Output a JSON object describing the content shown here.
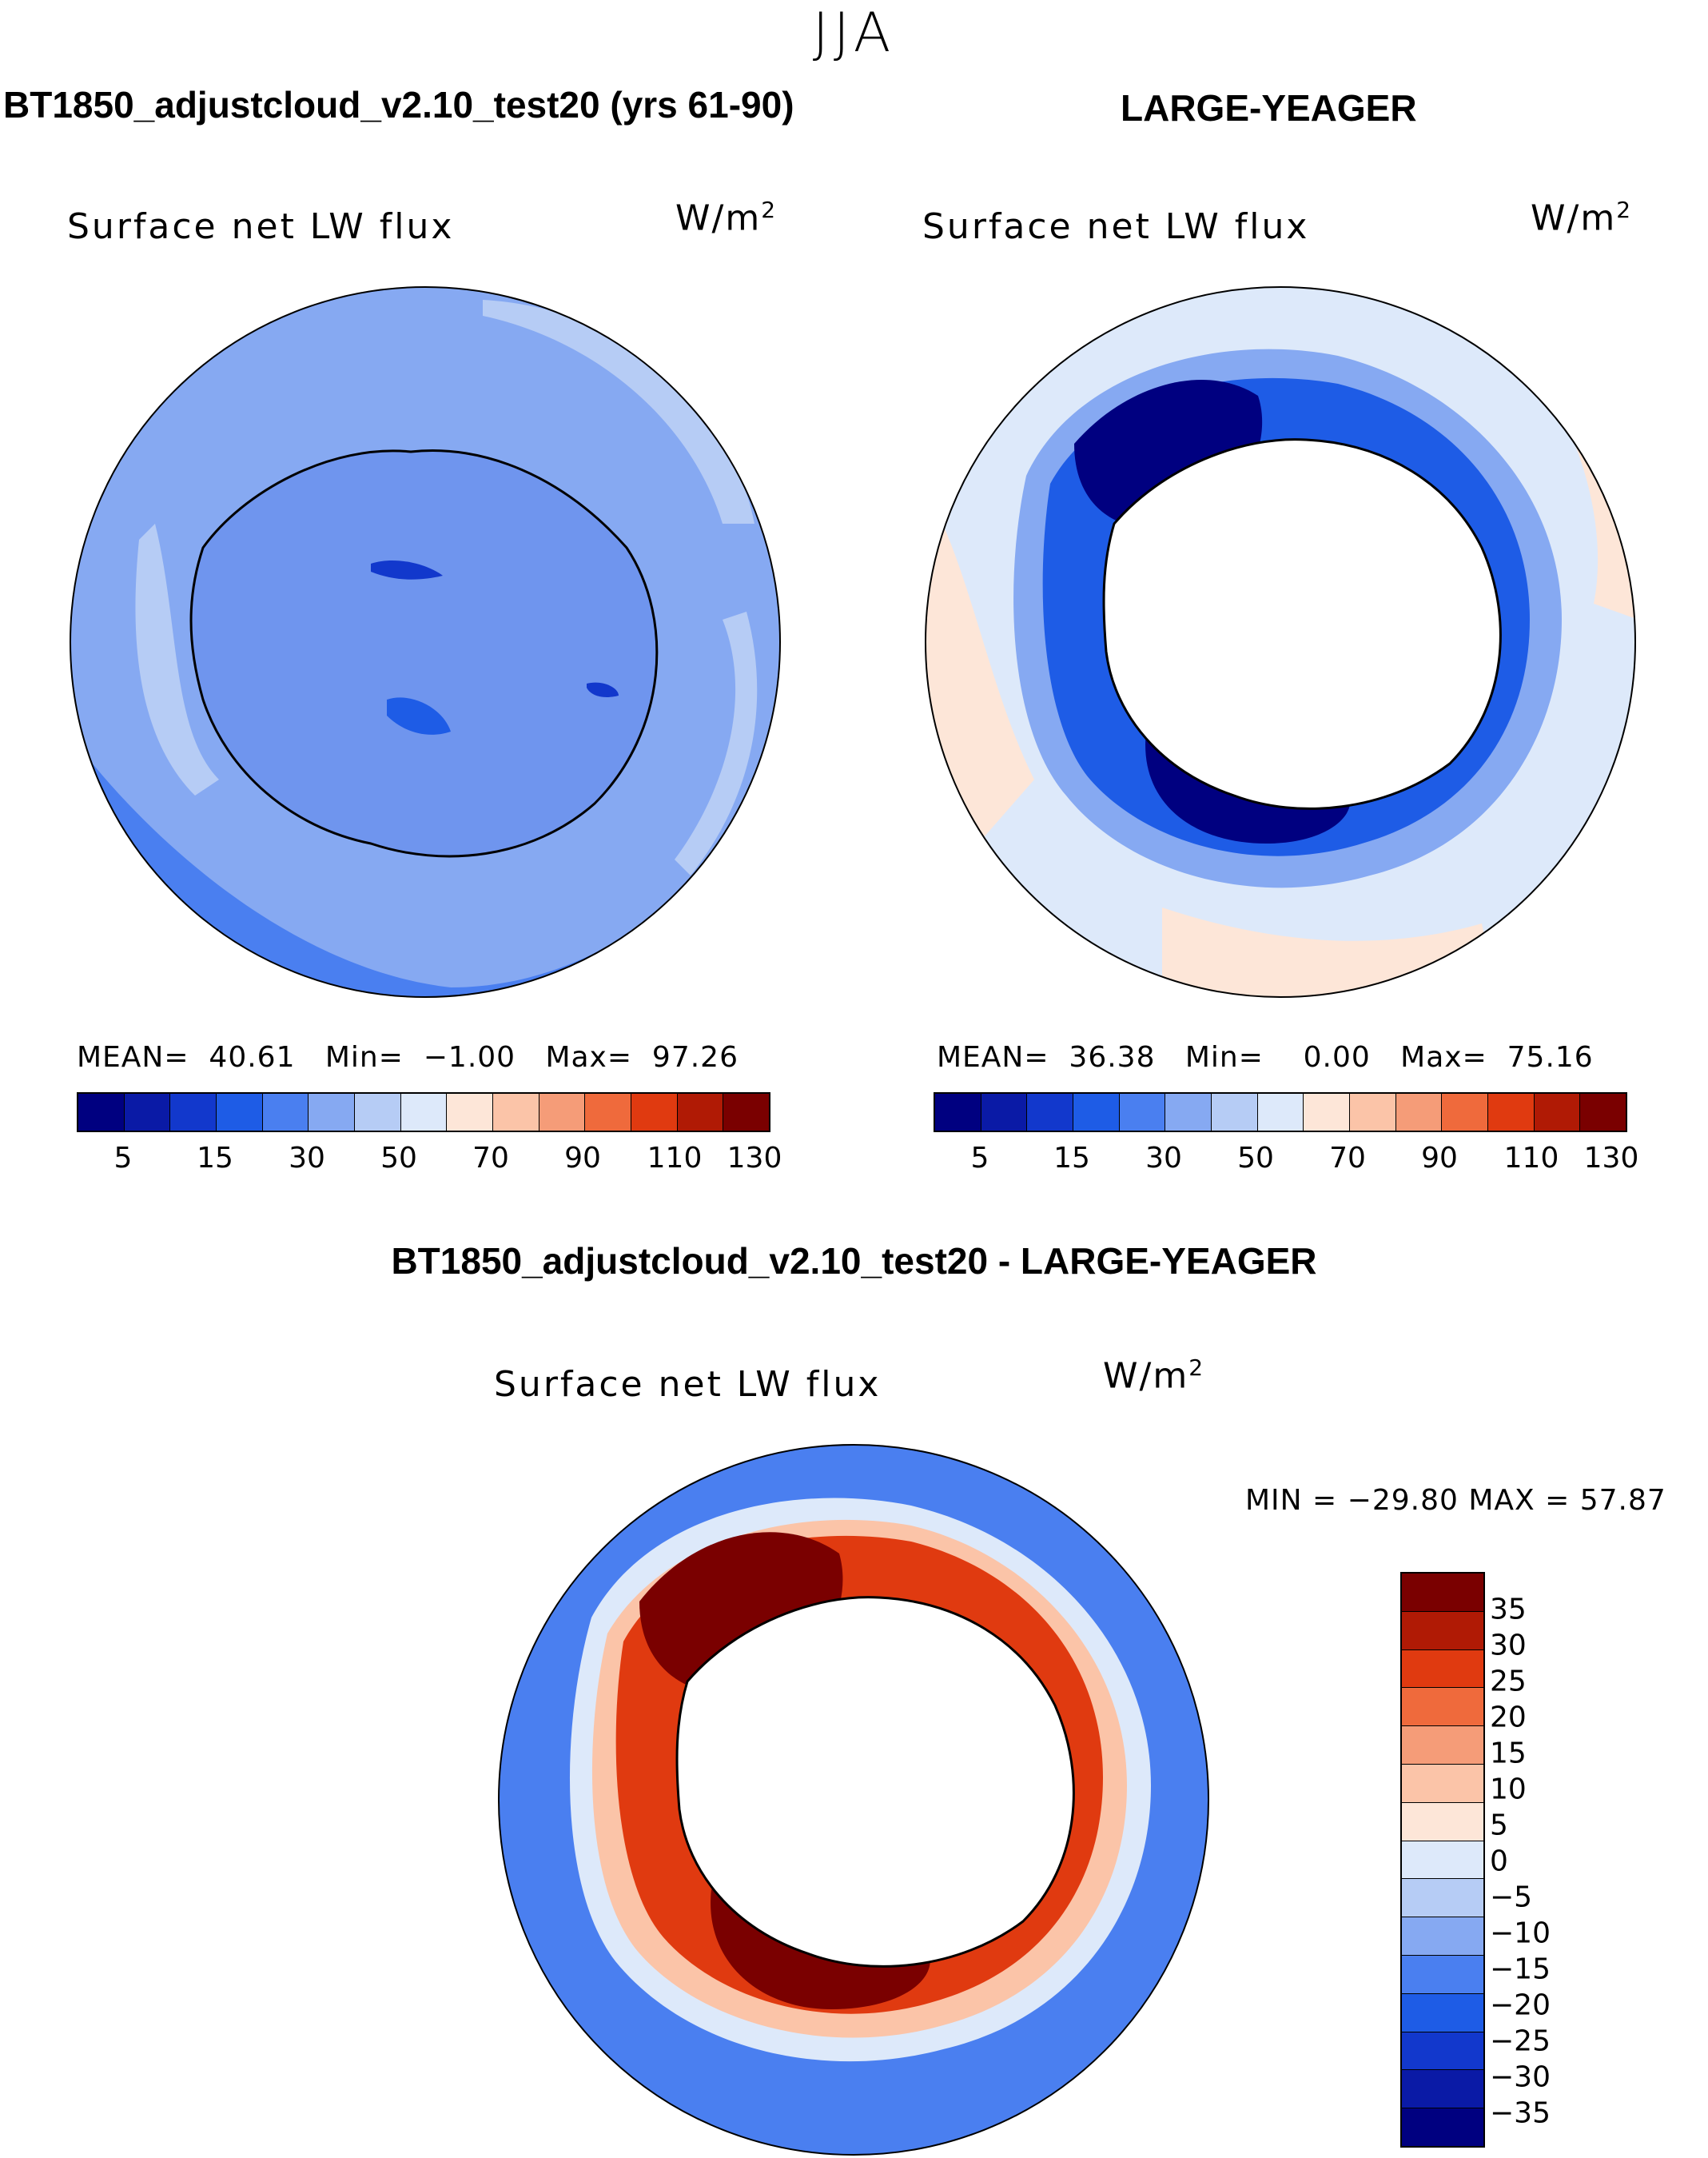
{
  "figure": {
    "season": "JJA",
    "variable": "Surface net LW flux",
    "units_main": "W/m",
    "units_sup": "2"
  },
  "panels": {
    "model": {
      "title": "BT1850_adjustcloud_v2.10_test20 (yrs 61-90)",
      "mean_label": "MEAN=",
      "mean": "40.61",
      "min_label": "Min=",
      "min": "−1.00",
      "max_label": "Max=",
      "max": "97.26"
    },
    "obs": {
      "title": "LARGE-YEAGER",
      "mean_label": "MEAN=",
      "mean": "36.38",
      "min_label": "Min=",
      "min": "0.00",
      "max_label": "Max=",
      "max": "75.16"
    },
    "diff": {
      "title": "BT1850_adjustcloud_v2.10_test20 - LARGE-YEAGER",
      "minmax_text": "MIN = −29.80  MAX =   57.87"
    }
  },
  "colors": {
    "field_bar": [
      "#000080",
      "#0a1aa6",
      "#1238cc",
      "#1e5ce6",
      "#4a7ff0",
      "#86a9f2",
      "#b6ccf5",
      "#dde9fa",
      "#fde6d8",
      "#fbc4a8",
      "#f59c78",
      "#ef6a3c",
      "#e03a10",
      "#b01a05",
      "#7a0000"
    ],
    "diff_bar": [
      "#7a0000",
      "#b01a05",
      "#e03a10",
      "#ef6a3c",
      "#f59c78",
      "#fbc4a8",
      "#fde6d8",
      "#dde9fa",
      "#b6ccf5",
      "#86a9f2",
      "#4a7ff0",
      "#1e5ce6",
      "#1238cc",
      "#0a1aa6",
      "#000080"
    ]
  },
  "chart_data": [
    {
      "type": "heatmap",
      "projection": "south-polar stereographic",
      "title": "BT1850_adjustcloud_v2.10_test20 (yrs 61-90)",
      "subtitle": "Surface net LW flux",
      "units": "W/m2",
      "colorbar_labels": [
        "5",
        "15",
        "30",
        "50",
        "70",
        "90",
        "110",
        "130"
      ],
      "colorbar_levels": [
        0,
        5,
        10,
        15,
        20,
        30,
        40,
        50,
        60,
        70,
        80,
        90,
        100,
        110,
        120,
        130
      ],
      "stats": {
        "mean": 40.61,
        "min": -1.0,
        "max": 97.26
      }
    },
    {
      "type": "heatmap",
      "projection": "south-polar stereographic",
      "title": "LARGE-YEAGER",
      "subtitle": "Surface net LW flux",
      "units": "W/m2",
      "colorbar_labels": [
        "5",
        "15",
        "30",
        "50",
        "70",
        "90",
        "110",
        "130"
      ],
      "colorbar_levels": [
        0,
        5,
        10,
        15,
        20,
        30,
        40,
        50,
        60,
        70,
        80,
        90,
        100,
        110,
        120,
        130
      ],
      "stats": {
        "mean": 36.38,
        "min": 0.0,
        "max": 75.16
      }
    },
    {
      "type": "heatmap",
      "projection": "south-polar stereographic",
      "title": "BT1850_adjustcloud_v2.10_test20 - LARGE-YEAGER",
      "subtitle": "Surface net LW flux",
      "units": "W/m2",
      "colorbar_labels": [
        "35",
        "30",
        "25",
        "20",
        "15",
        "10",
        "5",
        "0",
        "−5",
        "−10",
        "−15",
        "−20",
        "−25",
        "−30",
        "−35"
      ],
      "stats": {
        "min": -29.8,
        "max": 57.87
      }
    }
  ]
}
